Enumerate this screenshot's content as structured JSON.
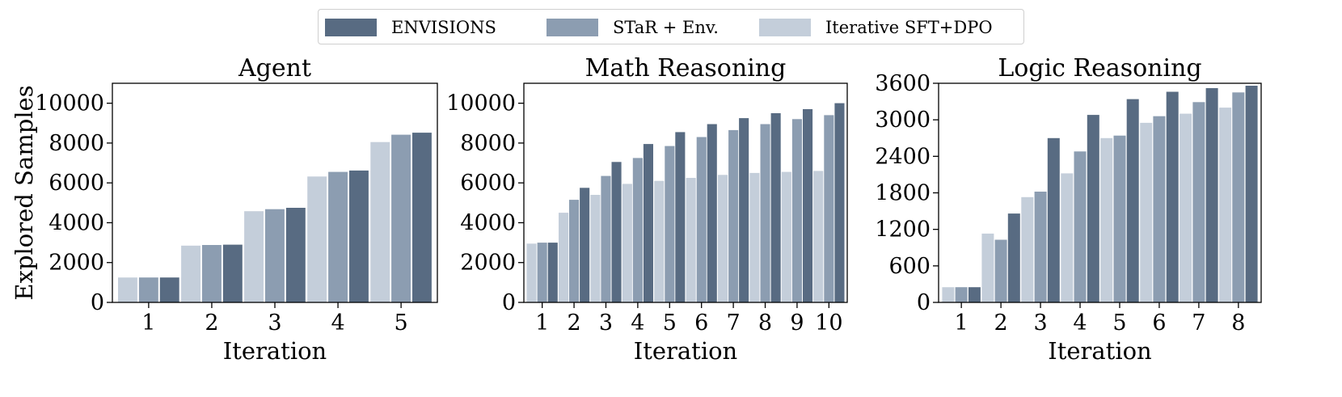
{
  "legend": {
    "items": [
      {
        "label": "ENVISIONS",
        "color": "#586b82"
      },
      {
        "label": "STaR + Env.",
        "color": "#8c9db1"
      },
      {
        "label": "Iterative SFT+DPO",
        "color": "#c4ceda"
      }
    ]
  },
  "chart_data": [
    {
      "type": "bar",
      "title": "Agent",
      "xlabel": "Iteration",
      "ylabel": "Explored Samples",
      "categories": [
        "1",
        "2",
        "3",
        "4",
        "5"
      ],
      "ylim": [
        0,
        11000
      ],
      "yticks": [
        0,
        2000,
        4000,
        6000,
        8000,
        10000
      ],
      "series": [
        {
          "name": "Iterative SFT+DPO",
          "values": [
            1250,
            2850,
            4580,
            6320,
            8050
          ]
        },
        {
          "name": "STaR + Env.",
          "values": [
            1250,
            2880,
            4680,
            6550,
            8420
          ]
        },
        {
          "name": "ENVISIONS",
          "values": [
            1250,
            2900,
            4750,
            6620,
            8520
          ]
        }
      ]
    },
    {
      "type": "bar",
      "title": "Math Reasoning",
      "xlabel": "Iteration",
      "ylabel": "",
      "categories": [
        "1",
        "2",
        "3",
        "4",
        "5",
        "6",
        "7",
        "8",
        "9",
        "10"
      ],
      "ylim": [
        0,
        11000
      ],
      "yticks": [
        0,
        2000,
        4000,
        6000,
        8000,
        10000
      ],
      "series": [
        {
          "name": "Iterative SFT+DPO",
          "values": [
            2950,
            4500,
            5400,
            5950,
            6100,
            6250,
            6400,
            6500,
            6550,
            6600
          ]
        },
        {
          "name": "STaR + Env.",
          "values": [
            3000,
            5150,
            6350,
            7250,
            7850,
            8300,
            8650,
            8950,
            9200,
            9400
          ]
        },
        {
          "name": "ENVISIONS",
          "values": [
            3000,
            5750,
            7050,
            7950,
            8550,
            8950,
            9250,
            9500,
            9700,
            10000
          ]
        }
      ]
    },
    {
      "type": "bar",
      "title": "Logic Reasoning",
      "xlabel": "Iteration",
      "ylabel": "",
      "categories": [
        "1",
        "2",
        "3",
        "4",
        "5",
        "6",
        "7",
        "8"
      ],
      "ylim": [
        0,
        3600
      ],
      "yticks": [
        0,
        600,
        1200,
        1800,
        2400,
        3000,
        3600
      ],
      "series": [
        {
          "name": "Iterative SFT+DPO",
          "values": [
            250,
            1130,
            1730,
            2120,
            2700,
            2950,
            3100,
            3200
          ]
        },
        {
          "name": "STaR + Env.",
          "values": [
            250,
            1030,
            1820,
            2480,
            2740,
            3060,
            3290,
            3450
          ]
        },
        {
          "name": "ENVISIONS",
          "values": [
            250,
            1460,
            2700,
            3080,
            3340,
            3460,
            3520,
            3560
          ]
        }
      ]
    }
  ]
}
